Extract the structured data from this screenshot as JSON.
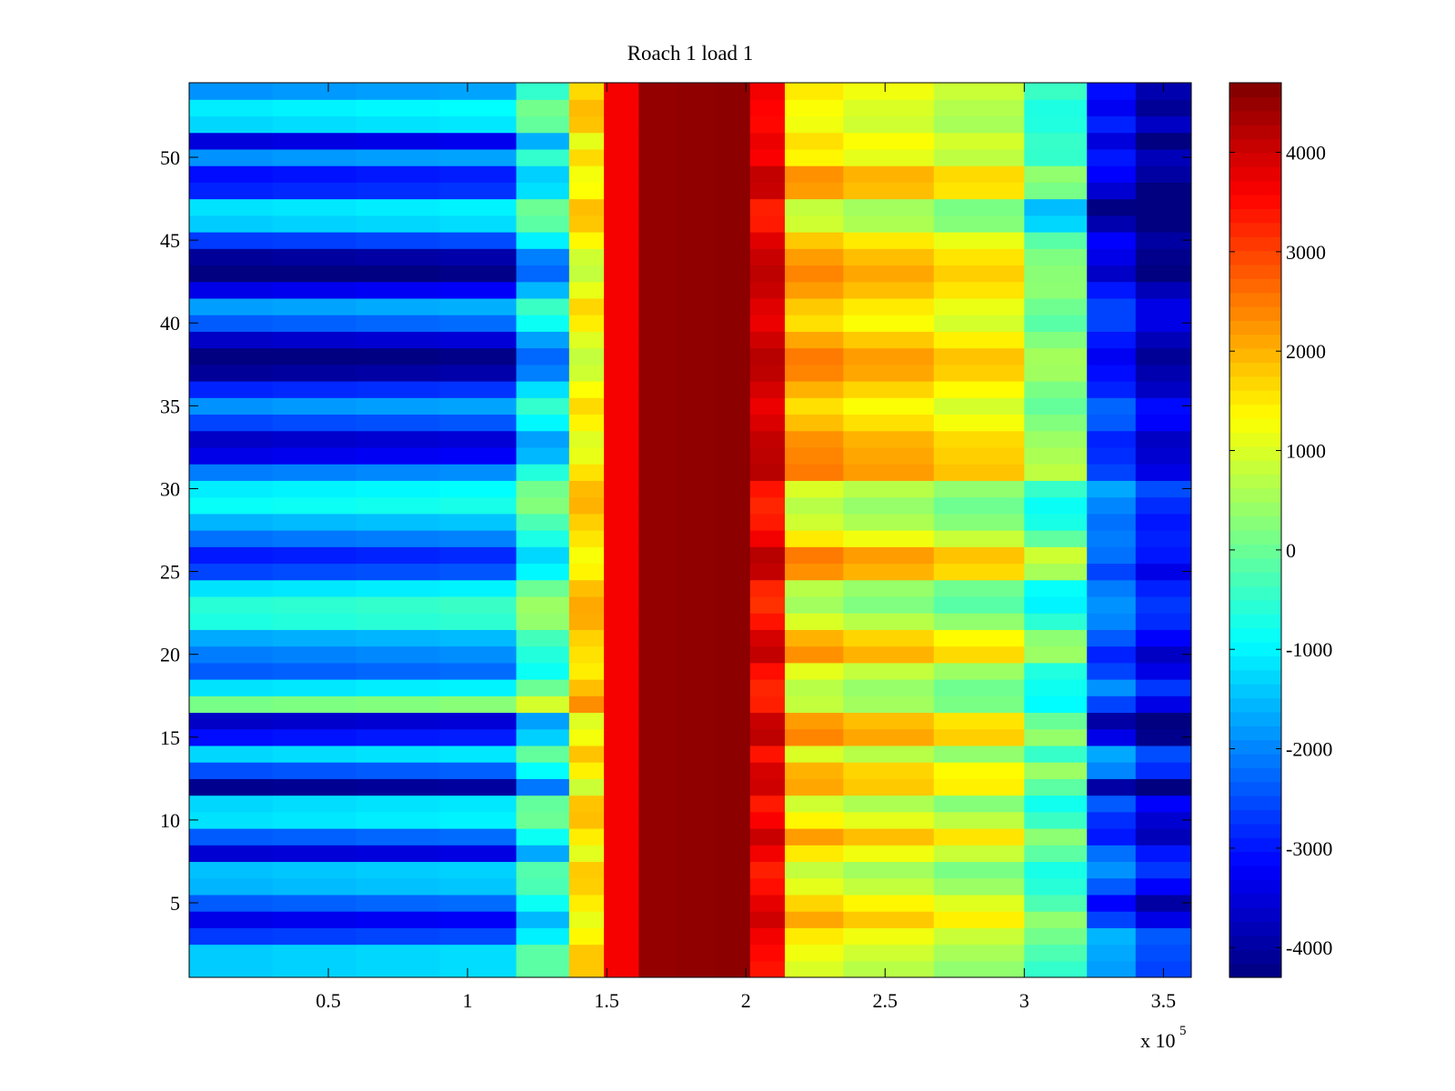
{
  "chart_data": {
    "type": "heatmap",
    "title": "Roach 1 load 1",
    "xlabel": "",
    "ylabel": "",
    "x_multiplier": "x 10",
    "x_multiplier_exponent": "5",
    "xlim": [
      0,
      3.6
    ],
    "ylim": [
      0.5,
      54.5
    ],
    "x_ticks": [
      {
        "value": 0.5,
        "label": "0.5"
      },
      {
        "value": 1,
        "label": "1"
      },
      {
        "value": 1.5,
        "label": "1.5"
      },
      {
        "value": 2,
        "label": "2"
      },
      {
        "value": 2.5,
        "label": "2.5"
      },
      {
        "value": 3,
        "label": "3"
      },
      {
        "value": 3.5,
        "label": "3.5"
      }
    ],
    "y_ticks": [
      {
        "value": 5,
        "label": "5"
      },
      {
        "value": 10,
        "label": "10"
      },
      {
        "value": 15,
        "label": "15"
      },
      {
        "value": 20,
        "label": "20"
      },
      {
        "value": 25,
        "label": "25"
      },
      {
        "value": 30,
        "label": "30"
      },
      {
        "value": 35,
        "label": "35"
      },
      {
        "value": 40,
        "label": "40"
      },
      {
        "value": 45,
        "label": "45"
      },
      {
        "value": 50,
        "label": "50"
      }
    ],
    "colorbar": {
      "colormap": "jet",
      "clim": [
        -4300,
        4700
      ],
      "ticks": [
        {
          "value": -4000,
          "label": "-4000"
        },
        {
          "value": -3000,
          "label": "-3000"
        },
        {
          "value": -2000,
          "label": "-2000"
        },
        {
          "value": -1000,
          "label": "-1000"
        },
        {
          "value": 0,
          "label": "0"
        },
        {
          "value": 1000,
          "label": "1000"
        },
        {
          "value": 2000,
          "label": "2000"
        },
        {
          "value": 3000,
          "label": "3000"
        },
        {
          "value": 4000,
          "label": "4000"
        }
      ]
    },
    "rows": 54,
    "column_centers": [
      0.15,
      0.45,
      0.75,
      1.05,
      1.3,
      1.43,
      1.55,
      1.68,
      1.82,
      1.95,
      2.08,
      2.2,
      2.5,
      2.85,
      3.15,
      3.3,
      3.5
    ],
    "row_shift_by_zone": {
      "left": [
        -500,
        -500,
        -1800,
        -2500,
        -1500,
        -700,
        -600,
        -2700,
        -1500,
        -300,
        -400,
        -3300,
        -1600,
        -400,
        -2200,
        -2800,
        1000,
        -300,
        -1500,
        -1200,
        -800,
        200,
        300,
        -300,
        -1700,
        -2100,
        -1300,
        -700,
        0,
        -200,
        -1200,
        -2500,
        -2800,
        -1700,
        -1000,
        -2000,
        -3200,
        -3500,
        -2800,
        -1500,
        -900,
        -2500,
        -3500,
        -3200,
        -1800,
        -500,
        -300,
        -2000,
        -2200,
        -1000,
        -2600,
        -400,
        -200,
        -1000
      ],
      "mid": [
        -200,
        0,
        300,
        900,
        500,
        -100,
        -400,
        300,
        1000,
        200,
        -300,
        900,
        800,
        -200,
        1200,
        1000,
        -400,
        -500,
        -100,
        1100,
        800,
        -200,
        -700,
        -500,
        1100,
        1300,
        300,
        -300,
        -500,
        -200,
        1300,
        1200,
        1100,
        700,
        400,
        800,
        1200,
        1300,
        900,
        400,
        600,
        1000,
        1200,
        1000,
        600,
        -300,
        -400,
        1000,
        1100,
        200,
        400,
        0,
        100,
        300
      ],
      "right": [
        -400,
        -300,
        -200,
        -1200,
        -1800,
        -1000,
        -500,
        -800,
        -1600,
        -1400,
        -1000,
        -2600,
        -600,
        -300,
        -2000,
        -2600,
        -1200,
        -500,
        -1200,
        -1500,
        -1000,
        -600,
        -500,
        -700,
        -1200,
        -800,
        -700,
        -800,
        -600,
        -300,
        -1200,
        -1400,
        -1500,
        -1000,
        -900,
        -1500,
        -1700,
        -1900,
        -1600,
        -1200,
        -1200,
        -1600,
        -2300,
        -2000,
        -1800,
        -2500,
        -2900,
        -2200,
        -1800,
        -1600,
        -2100,
        -1500,
        -1900,
        -1700
      ]
    }
  }
}
